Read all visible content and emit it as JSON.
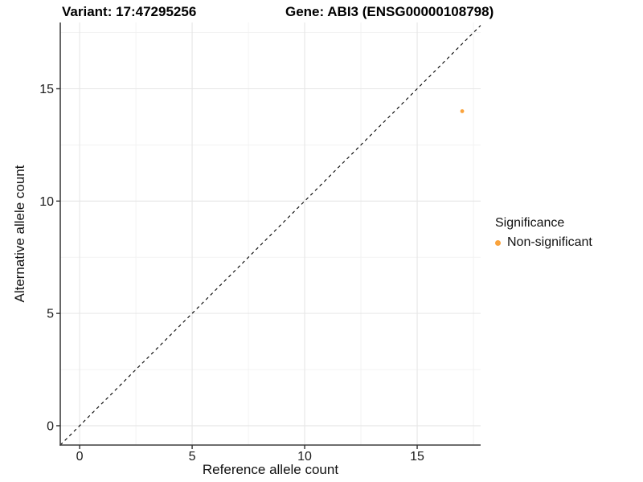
{
  "header": {
    "variant_title": "Variant: 17:47295256",
    "gene_title": "Gene: ABI3 (ENSG00000108798)"
  },
  "axes": {
    "x_label": "Reference allele count",
    "y_label": "Alternative allele count",
    "x_tick_labels": [
      "0",
      "5",
      "10",
      "15"
    ],
    "y_tick_labels": [
      "0",
      "5",
      "10",
      "15"
    ]
  },
  "legend": {
    "title": "Significance",
    "entries": [
      {
        "label": "Non-significant",
        "marker": "dot-icon",
        "color": "#FAA33C"
      }
    ]
  },
  "colors": {
    "point": "#FAA33C",
    "identity_line": "#000000",
    "axis_line": "#3F3F3F",
    "tick_mark": "#333333",
    "grid_major": "#E6E6E6",
    "grid_minor": "#F1F1F1",
    "background": "#FFFFFF"
  },
  "chart_data": {
    "type": "scatter",
    "title": "Variant: 17:47295256    Gene: ABI3 (ENSG00000108798)",
    "xlabel": "Reference allele count",
    "ylabel": "Alternative allele count",
    "xlim": [
      -0.86,
      17.82
    ],
    "ylim": [
      -0.86,
      17.95
    ],
    "x_ticks": [
      0,
      5,
      10,
      15
    ],
    "y_ticks": [
      0,
      5,
      10,
      15
    ],
    "x_minor_ticks": [
      2.5,
      7.5,
      12.5,
      17.5
    ],
    "y_minor_ticks": [
      2.5,
      7.5,
      12.5,
      17.5
    ],
    "grid": "on",
    "legend_position": "right",
    "series": [
      {
        "name": "Non-significant",
        "color": "#FAA33C",
        "points": [
          {
            "x": 17,
            "y": 14
          }
        ]
      }
    ],
    "reference_line": {
      "kind": "identity y=x",
      "style": "dashed",
      "color": "#000000"
    }
  }
}
